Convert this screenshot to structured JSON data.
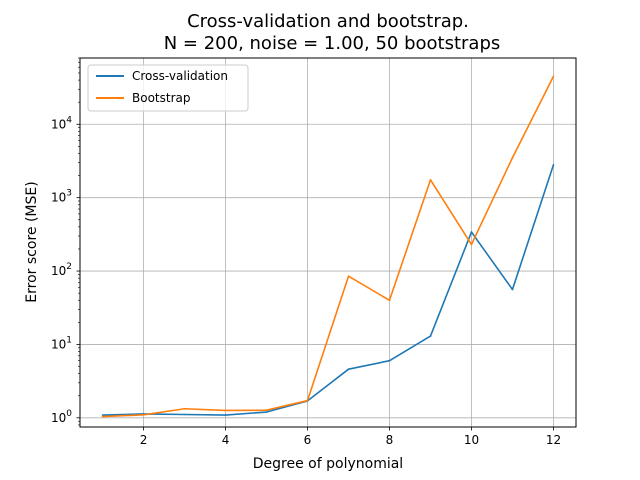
{
  "chart_data": {
    "type": "line",
    "title_line1": "Cross-validation and bootstrap.",
    "title_line2": "N = 200, noise = 1.00, 50 bootstraps",
    "xlabel": "Degree of polynomial",
    "ylabel": "Error score (MSE)",
    "x": [
      1,
      2,
      3,
      4,
      5,
      6,
      7,
      8,
      9,
      10,
      11,
      12
    ],
    "series": [
      {
        "name": "Cross-validation",
        "color": "#1f77b4",
        "values": [
          1.09,
          1.13,
          1.11,
          1.09,
          1.2,
          1.7,
          4.6,
          6.0,
          13.0,
          340,
          56,
          2800
        ]
      },
      {
        "name": "Bootstrap",
        "color": "#ff7f0e",
        "values": [
          1.04,
          1.1,
          1.33,
          1.26,
          1.27,
          1.72,
          85,
          40,
          1750,
          230,
          3500,
          45000
        ]
      }
    ],
    "xlim": [
      0.45,
      12.55
    ],
    "ylim": [
      0.75,
      80000
    ],
    "yscale": "log",
    "xticks": [
      2,
      4,
      6,
      8,
      10,
      12
    ],
    "xtick_labels": [
      "2",
      "4",
      "6",
      "8",
      "10",
      "12"
    ],
    "yticks": [
      1,
      10,
      100,
      1000,
      10000
    ],
    "ytick_exponents": [
      "0",
      "1",
      "2",
      "3",
      "4"
    ],
    "ytick_base": "10",
    "grid": true,
    "legend_position": "upper-left"
  }
}
